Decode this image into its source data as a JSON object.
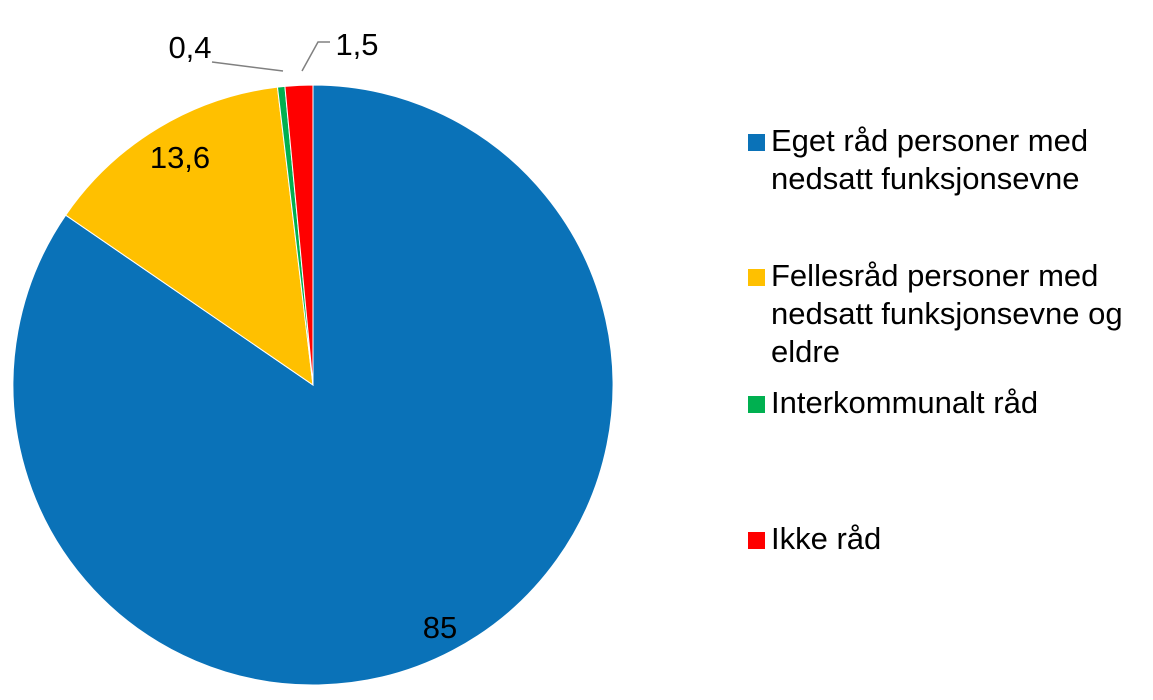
{
  "chart_data": {
    "type": "pie",
    "categories": [
      "Eget råd personer med nedsatt funksjonsevne",
      "Fellesråd personer med nedsatt funksjonsevne og eldre",
      "Interkommunalt råd",
      "Ikke råd"
    ],
    "values": [
      85,
      13.6,
      0.4,
      1.5
    ],
    "value_labels": [
      "85",
      "13,6",
      "0,4",
      "1,5"
    ],
    "colors": [
      "#0a72b8",
      "#ffc000",
      "#00b050",
      "#ff0000"
    ],
    "legend": "right"
  }
}
